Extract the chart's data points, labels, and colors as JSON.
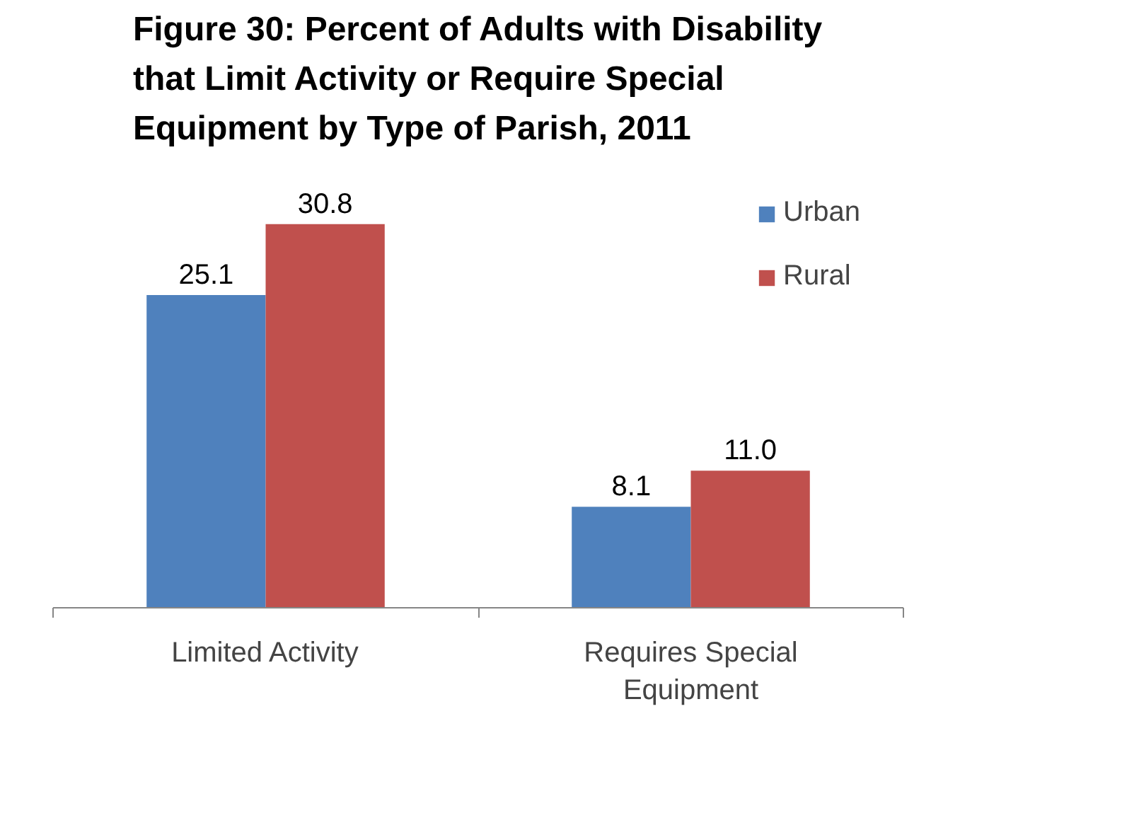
{
  "chart_data": {
    "type": "bar",
    "title": "Figure 30: Percent of Adults with Disability that Limit Activity or Require Special Equipment by Type of Parish, 2011",
    "categories": [
      "Limited Activity",
      "Requires Special Equipment"
    ],
    "series": [
      {
        "name": "Urban",
        "color": "#4f81bd",
        "values": [
          25.1,
          8.1
        ],
        "value_labels": [
          "25.1",
          "8.1"
        ]
      },
      {
        "name": "Rural",
        "color": "#c0504d",
        "values": [
          30.8,
          11.0
        ],
        "value_labels": [
          "30.8",
          "11.0"
        ]
      }
    ],
    "legend": "top right",
    "grid": false
  }
}
